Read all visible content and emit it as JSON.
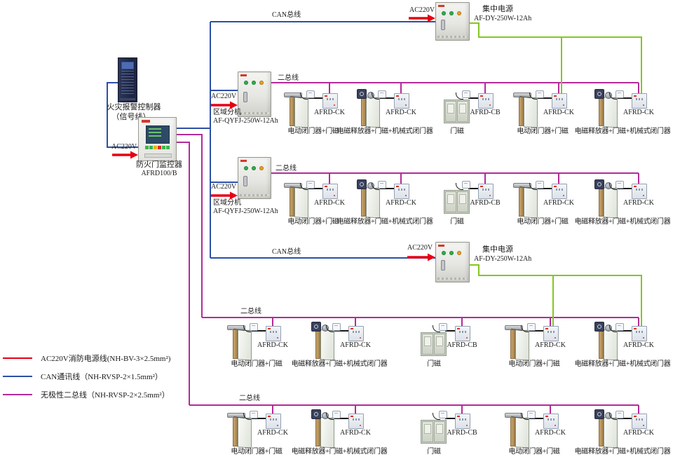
{
  "colors": {
    "power_line": "#e60013",
    "can_line": "#2b50a8",
    "bus_line": "#b42a9a",
    "aux_line": "#85c620"
  },
  "labels": {
    "can_bus": "CAN总线",
    "two_bus": "二总线",
    "ac220": "AC220V"
  },
  "equipment": {
    "fire_alarm_controller": {
      "name": "火灾报警控制器",
      "note": "（信号线）"
    },
    "door_monitor": {
      "name": "防火门监控器",
      "model": "AFRD100/B"
    },
    "regional_unit": {
      "name": "区域分机",
      "model": "AF-QYFJ-250W-12Ah"
    },
    "central_power": {
      "name": "集中电源",
      "model": "AF-DY-250W-12Ah"
    }
  },
  "device_types": {
    "closer": {
      "module": "AFRD-CK",
      "label": "电动闭门器+门磁"
    },
    "releaser": {
      "module": "AFRD-CK",
      "label": "电磁释放器+门磁+机械式闭门器"
    },
    "magnet": {
      "module": "AFRD-CB",
      "label": "门磁"
    }
  },
  "rows": [
    {
      "bus_label": "二总线",
      "devices": [
        "closer",
        "releaser",
        "magnet",
        "closer",
        "releaser"
      ]
    },
    {
      "bus_label": "二总线",
      "devices": [
        "closer",
        "releaser",
        "magnet",
        "closer",
        "releaser"
      ]
    },
    {
      "bus_label": "二总线",
      "devices": [
        "closer",
        "releaser",
        "magnet",
        "closer",
        "releaser"
      ]
    },
    {
      "bus_label": "二总线",
      "devices": [
        "closer",
        "releaser",
        "magnet",
        "closer",
        "releaser"
      ]
    }
  ],
  "legend": {
    "items": [
      {
        "key": "power_line",
        "label": "AC220V消防电源线(NH-BV-3×2.5mm²)"
      },
      {
        "key": "can_line",
        "label": "CAN通讯线（NH-RVSP-2×1.5mm²）"
      },
      {
        "key": "bus_line",
        "label": "无极性二总线（NH-RVSP-2×2.5mm²）"
      }
    ]
  }
}
